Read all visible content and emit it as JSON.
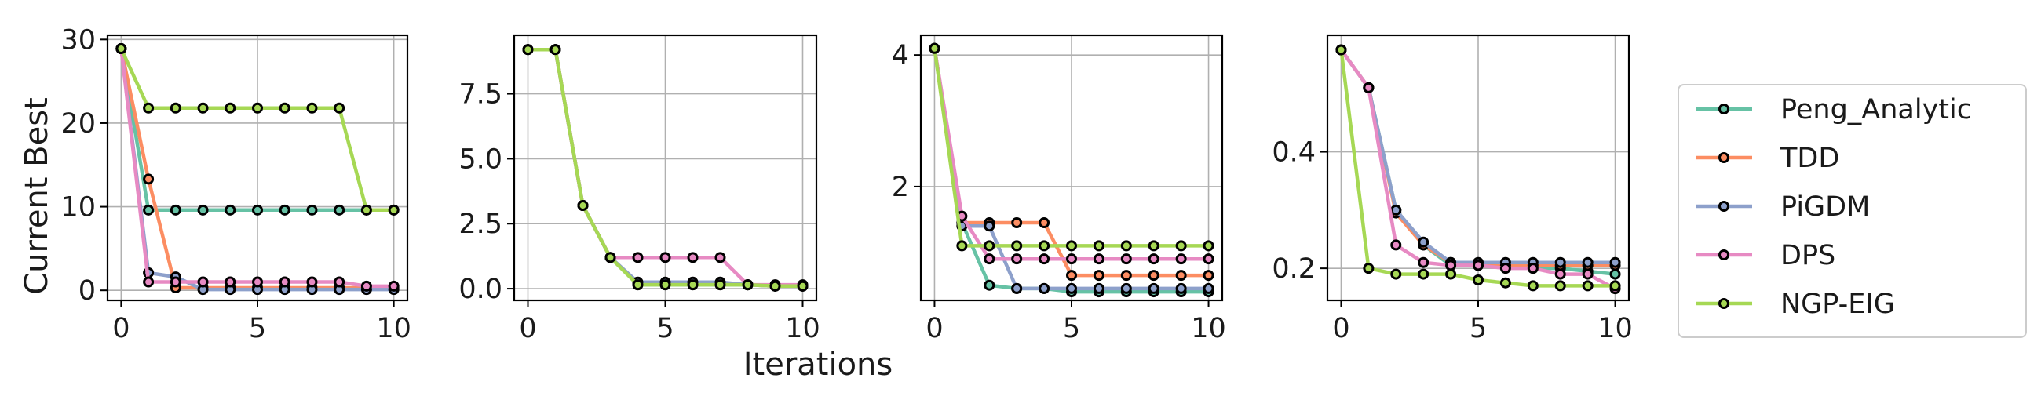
{
  "figure": {
    "ylabel": "Current Best",
    "xlabel": "Iterations"
  },
  "colors": {
    "Peng_Analytic": "#66c2a5",
    "TDD": "#fc8d62",
    "PiGDM": "#8da0cb",
    "DPS": "#e78ac3",
    "NGP-EIG": "#a6d854"
  },
  "legend": {
    "placement": "right",
    "entries": [
      "Peng_Analytic",
      "TDD",
      "PiGDM",
      "DPS",
      "NGP-EIG"
    ]
  },
  "chart_data": [
    {
      "type": "line",
      "x": [
        0,
        1,
        2,
        3,
        4,
        5,
        6,
        7,
        8,
        9,
        10
      ],
      "xlim": [
        -0.5,
        10.5
      ],
      "ylim": [
        -1.2,
        30.5
      ],
      "xticks": [
        0,
        5,
        10
      ],
      "yticks": [
        0,
        10,
        20,
        30
      ],
      "ytick_labels": [
        "0",
        "10",
        "20",
        "30"
      ],
      "grid": true,
      "series": [
        {
          "name": "Peng_Analytic",
          "values": [
            28.9,
            9.6,
            9.6,
            9.6,
            9.6,
            9.6,
            9.6,
            9.6,
            9.6,
            9.6,
            9.6
          ]
        },
        {
          "name": "TDD",
          "values": [
            28.9,
            13.3,
            0.3,
            0.3,
            0.3,
            0.3,
            0.3,
            0.3,
            0.3,
            0.3,
            0.3
          ]
        },
        {
          "name": "PiGDM",
          "values": [
            28.9,
            2.1,
            1.6,
            0.1,
            0.1,
            0.1,
            0.1,
            0.1,
            0.1,
            0.1,
            0.1
          ]
        },
        {
          "name": "DPS",
          "values": [
            28.9,
            1.0,
            1.0,
            1.0,
            1.0,
            1.0,
            1.0,
            1.0,
            1.0,
            0.5,
            0.5
          ]
        },
        {
          "name": "NGP-EIG",
          "values": [
            28.9,
            21.8,
            21.8,
            21.8,
            21.8,
            21.8,
            21.8,
            21.8,
            21.8,
            9.6,
            9.6
          ]
        }
      ]
    },
    {
      "type": "line",
      "x": [
        0,
        1,
        2,
        3,
        4,
        5,
        6,
        7,
        8,
        9,
        10
      ],
      "xlim": [
        -0.5,
        10.5
      ],
      "ylim": [
        -0.45,
        9.75
      ],
      "xticks": [
        0,
        5,
        10
      ],
      "yticks": [
        0,
        2.5,
        5,
        7.5
      ],
      "ytick_labels": [
        "0.0",
        "2.5",
        "5.0",
        "7.5"
      ],
      "grid": true,
      "series": [
        {
          "name": "Peng_Analytic",
          "values": [
            9.2,
            9.2,
            3.2,
            1.2,
            0.15,
            0.15,
            0.15,
            0.15,
            0.15,
            0.1,
            0.1
          ]
        },
        {
          "name": "TDD",
          "values": [
            9.2,
            9.2,
            3.2,
            1.2,
            0.2,
            0.2,
            0.2,
            0.2,
            0.15,
            0.1,
            0.1
          ]
        },
        {
          "name": "PiGDM",
          "values": [
            9.2,
            9.2,
            3.2,
            1.2,
            0.25,
            0.25,
            0.25,
            0.25,
            0.15,
            0.1,
            0.1
          ]
        },
        {
          "name": "DPS",
          "values": [
            9.2,
            9.2,
            3.2,
            1.2,
            1.2,
            1.2,
            1.2,
            1.2,
            0.15,
            0.15,
            0.15
          ]
        },
        {
          "name": "NGP-EIG",
          "values": [
            9.2,
            9.2,
            3.2,
            1.2,
            0.15,
            0.15,
            0.15,
            0.15,
            0.15,
            0.1,
            0.1
          ]
        }
      ]
    },
    {
      "type": "line",
      "x": [
        0,
        1,
        2,
        3,
        4,
        5,
        6,
        7,
        8,
        9,
        10
      ],
      "xlim": [
        -0.5,
        10.5
      ],
      "ylim": [
        0.27,
        4.3
      ],
      "xticks": [
        0,
        5,
        10
      ],
      "yticks": [
        2,
        4
      ],
      "ytick_labels": [
        "2",
        "4"
      ],
      "grid": true,
      "series": [
        {
          "name": "Peng_Analytic",
          "values": [
            4.1,
            1.45,
            0.5,
            0.45,
            0.45,
            0.4,
            0.4,
            0.4,
            0.4,
            0.4,
            0.4
          ]
        },
        {
          "name": "TDD",
          "values": [
            4.1,
            1.45,
            1.45,
            1.45,
            1.45,
            0.65,
            0.65,
            0.65,
            0.65,
            0.65,
            0.65
          ]
        },
        {
          "name": "PiGDM",
          "values": [
            4.1,
            1.4,
            1.4,
            0.45,
            0.45,
            0.45,
            0.45,
            0.45,
            0.45,
            0.45,
            0.45
          ]
        },
        {
          "name": "DPS",
          "values": [
            4.1,
            1.55,
            0.9,
            0.9,
            0.9,
            0.9,
            0.9,
            0.9,
            0.9,
            0.9,
            0.9
          ]
        },
        {
          "name": "NGP-EIG",
          "values": [
            4.1,
            1.1,
            1.1,
            1.1,
            1.1,
            1.1,
            1.1,
            1.1,
            1.1,
            1.1,
            1.1
          ]
        }
      ]
    },
    {
      "type": "line",
      "x": [
        0,
        1,
        2,
        3,
        4,
        5,
        6,
        7,
        8,
        9,
        10
      ],
      "xlim": [
        -0.5,
        10.5
      ],
      "ylim": [
        0.145,
        0.6
      ],
      "xticks": [
        0,
        5,
        10
      ],
      "yticks": [
        0.2,
        0.4
      ],
      "ytick_labels": [
        "0.2",
        "0.4"
      ],
      "grid": true,
      "series": [
        {
          "name": "Peng_Analytic",
          "values": [
            0.575,
            0.51,
            0.3,
            0.24,
            0.205,
            0.205,
            0.205,
            0.2,
            0.2,
            0.195,
            0.19
          ]
        },
        {
          "name": "TDD",
          "values": [
            0.575,
            0.51,
            0.295,
            0.24,
            0.21,
            0.205,
            0.205,
            0.205,
            0.205,
            0.205,
            0.205
          ]
        },
        {
          "name": "PiGDM",
          "values": [
            0.575,
            0.51,
            0.3,
            0.245,
            0.21,
            0.21,
            0.21,
            0.21,
            0.21,
            0.21,
            0.21
          ]
        },
        {
          "name": "DPS",
          "values": [
            0.575,
            0.51,
            0.24,
            0.21,
            0.205,
            0.205,
            0.2,
            0.2,
            0.19,
            0.19,
            0.165
          ]
        },
        {
          "name": "NGP-EIG",
          "values": [
            0.575,
            0.2,
            0.19,
            0.19,
            0.19,
            0.18,
            0.175,
            0.17,
            0.17,
            0.17,
            0.17
          ]
        }
      ]
    }
  ]
}
